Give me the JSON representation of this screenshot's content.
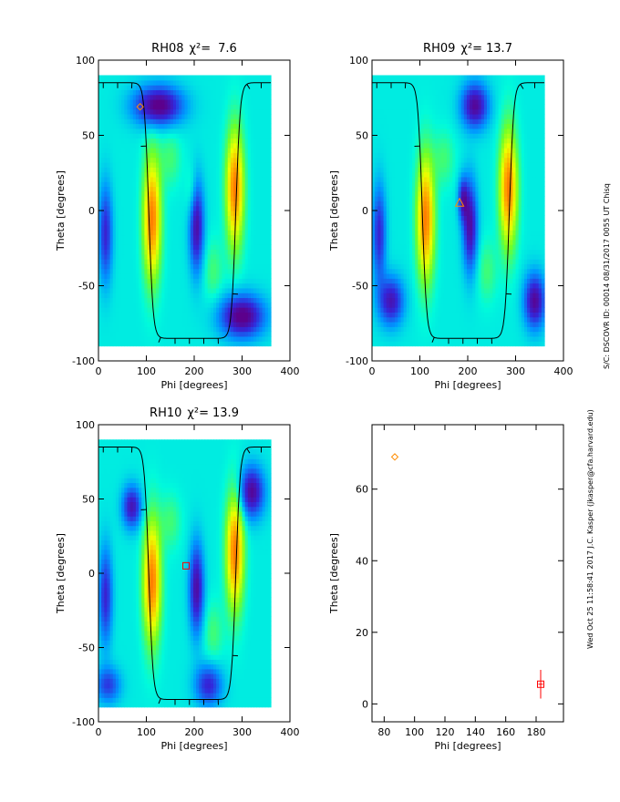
{
  "chart_data": [
    {
      "type": "heatmap",
      "panel_label": "RH08",
      "chi_label": "χ²=",
      "chi_value": "7.6",
      "xlabel": "Phi [degrees]",
      "ylabel": "Theta [degrees]",
      "xlim": [
        0,
        400
      ],
      "ylim": [
        -100,
        100
      ],
      "xticks": [
        0,
        100,
        200,
        300,
        400
      ],
      "yticks": [
        -100,
        -50,
        0,
        50,
        100
      ],
      "data_extent": {
        "phi": [
          0,
          360
        ],
        "theta": [
          -90,
          90
        ]
      },
      "curve_phase": 5,
      "marker": {
        "shape": "diamond",
        "color": "#ff8c00",
        "phi": 87,
        "theta": 69
      }
    },
    {
      "type": "heatmap",
      "panel_label": "RH09",
      "chi_label": "χ²=",
      "chi_value": "13.7",
      "xlabel": "Phi [degrees]",
      "ylabel": "Theta [degrees]",
      "xlim": [
        0,
        400
      ],
      "ylim": [
        -100,
        100
      ],
      "xticks": [
        0,
        100,
        200,
        300,
        400
      ],
      "yticks": [
        -100,
        -50,
        0,
        50,
        100
      ],
      "data_extent": {
        "phi": [
          0,
          360
        ],
        "theta": [
          -90,
          90
        ]
      },
      "curve_phase": 5,
      "marker": {
        "shape": "triangle",
        "color": "#ff8c00",
        "phi": 183,
        "theta": 5
      }
    },
    {
      "type": "heatmap",
      "panel_label": "RH10",
      "chi_label": "χ²=",
      "chi_value": "13.9",
      "xlabel": "Phi [degrees]",
      "ylabel": "Theta [degrees]",
      "xlim": [
        0,
        400
      ],
      "ylim": [
        -100,
        100
      ],
      "xticks": [
        0,
        100,
        200,
        300,
        400
      ],
      "yticks": [
        -100,
        -50,
        0,
        50,
        100
      ],
      "data_extent": {
        "phi": [
          0,
          360
        ],
        "theta": [
          -90,
          90
        ]
      },
      "curve_phase": 5,
      "marker": {
        "shape": "square",
        "color": "#ff0000",
        "phi": 183,
        "theta": 5
      }
    },
    {
      "type": "scatter",
      "xlabel": "Phi [degrees]",
      "ylabel": "Theta [degrees]",
      "xlim": [
        72,
        198
      ],
      "ylim": [
        -5,
        78
      ],
      "xticks": [
        80,
        100,
        120,
        140,
        160,
        180
      ],
      "yticks": [
        0,
        20,
        40,
        60
      ],
      "points": [
        {
          "phi": 87,
          "theta": 69,
          "shape": "diamond",
          "color": "#ff8c00"
        },
        {
          "phi": 183,
          "theta": 5.5,
          "shape": "square",
          "color": "#ff0000",
          "phi_err": 1.5,
          "theta_err": 4
        }
      ]
    }
  ],
  "side_annotations": {
    "line1": "Wed Oct 25 11:58:41 2017   J.C. Kasper (jkasper@cfa.harvard.edu)",
    "line2": "S/C: DSCOVR ID: 00014 08/31/2017  0055 UT Chisq"
  }
}
